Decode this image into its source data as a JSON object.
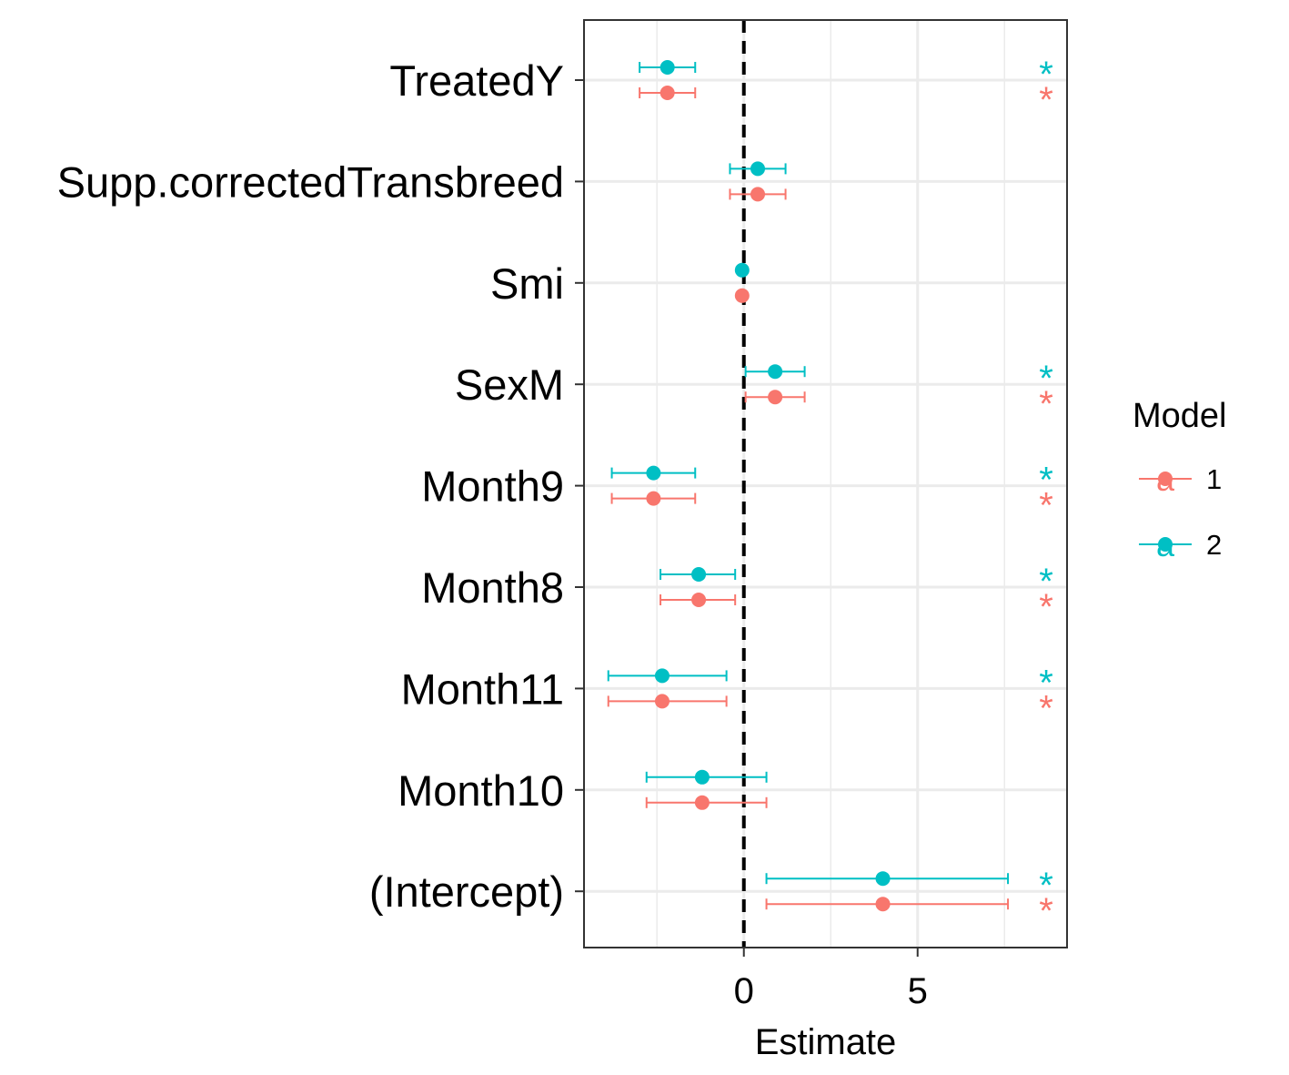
{
  "chart_data": {
    "type": "scatter",
    "subtype": "coefficient-plot-with-error-bars",
    "xlabel": "Estimate",
    "ylabel": "",
    "xlim": [
      -4.6,
      9.3
    ],
    "xticks": [
      0,
      5
    ],
    "reference_line": {
      "x": 0,
      "style": "dashed"
    },
    "grid": true,
    "legend": {
      "title": "Model",
      "placement": "right",
      "entries": [
        {
          "label": "1",
          "color": "#F8766D",
          "key_glyph": "a"
        },
        {
          "label": "2",
          "color": "#00BFC4",
          "key_glyph": "a"
        }
      ]
    },
    "categories": [
      "TreatedY",
      "Supp.correctedTransbreed",
      "Smi",
      "SexM",
      "Month9",
      "Month8",
      "Month11",
      "Month10",
      "(Intercept)"
    ],
    "series": [
      {
        "name": "1",
        "color": "#F8766D",
        "estimate": [
          -2.2,
          0.4,
          -0.05,
          0.9,
          -2.6,
          -1.3,
          -2.35,
          -1.2,
          4.0
        ],
        "lower": [
          -3.0,
          -0.4,
          -0.05,
          0.05,
          -3.8,
          -2.4,
          -3.9,
          -2.8,
          0.65
        ],
        "upper": [
          -1.4,
          1.2,
          -0.05,
          1.75,
          -1.4,
          -0.25,
          -0.5,
          0.65,
          7.6
        ],
        "significant": [
          "*",
          "",
          "",
          "*",
          "*",
          "*",
          "*",
          "",
          "*"
        ]
      },
      {
        "name": "2",
        "color": "#00BFC4",
        "estimate": [
          -2.2,
          0.4,
          -0.05,
          0.9,
          -2.6,
          -1.3,
          -2.35,
          -1.2,
          4.0
        ],
        "lower": [
          -3.0,
          -0.4,
          -0.05,
          0.05,
          -3.8,
          -2.4,
          -3.9,
          -2.8,
          0.65
        ],
        "upper": [
          -1.4,
          1.2,
          -0.05,
          1.75,
          -1.4,
          -0.25,
          -0.5,
          0.65,
          7.6
        ],
        "significant": [
          "*",
          "",
          "",
          "*",
          "*",
          "*",
          "*",
          "",
          "*"
        ]
      }
    ]
  }
}
